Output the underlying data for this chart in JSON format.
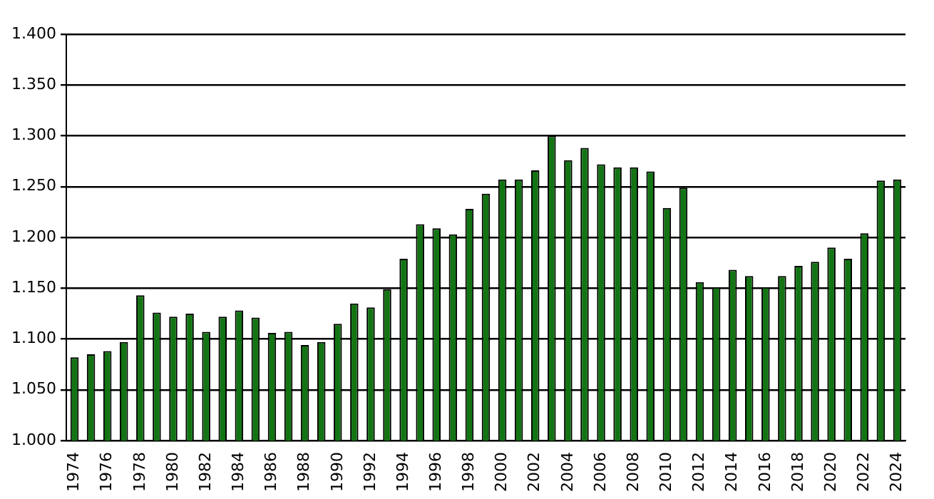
{
  "chart_data": {
    "type": "bar",
    "categories": [
      "1974",
      null,
      "1976",
      null,
      "1978",
      null,
      "1980",
      null,
      "1982",
      null,
      "1984",
      null,
      "1986",
      null,
      "1988",
      null,
      "1990",
      null,
      "1992",
      null,
      "1994",
      null,
      "1996",
      null,
      "1998",
      null,
      "2000",
      null,
      "2002",
      null,
      "2004",
      null,
      "2006",
      null,
      "2008",
      null,
      "2010",
      null,
      "2012",
      null,
      "2014",
      null,
      "2016",
      null,
      "2018",
      null,
      "2020",
      null,
      "2022",
      null,
      "2024"
    ],
    "values": [
      1.082,
      1.085,
      1.088,
      1.097,
      1.143,
      1.126,
      1.122,
      1.125,
      1.107,
      1.122,
      1.128,
      1.121,
      1.106,
      1.107,
      1.094,
      1.097,
      1.115,
      1.135,
      1.131,
      1.149,
      1.179,
      1.213,
      1.209,
      1.203,
      1.228,
      1.243,
      1.257,
      1.257,
      1.266,
      1.3,
      1.276,
      1.288,
      1.272,
      1.269,
      1.269,
      1.265,
      1.229,
      1.249,
      1.156,
      1.151,
      1.168,
      1.162,
      1.151,
      1.162,
      1.172,
      1.176,
      1.19,
      1.179,
      1.204,
      1.256,
      1.257
    ],
    "color": "#137413",
    "ylim": [
      1.0,
      1.4
    ],
    "yticks": [
      {
        "value": 1.0,
        "label": "1.000"
      },
      {
        "value": 1.05,
        "label": "1.050"
      },
      {
        "value": 1.1,
        "label": "1.100"
      },
      {
        "value": 1.15,
        "label": "1.150"
      },
      {
        "value": 1.2,
        "label": "1.200"
      },
      {
        "value": 1.25,
        "label": "1.250"
      },
      {
        "value": 1.3,
        "label": "1.300"
      },
      {
        "value": 1.35,
        "label": "1.350"
      },
      {
        "value": 1.4,
        "label": "1.400"
      }
    ],
    "grid": "y"
  }
}
